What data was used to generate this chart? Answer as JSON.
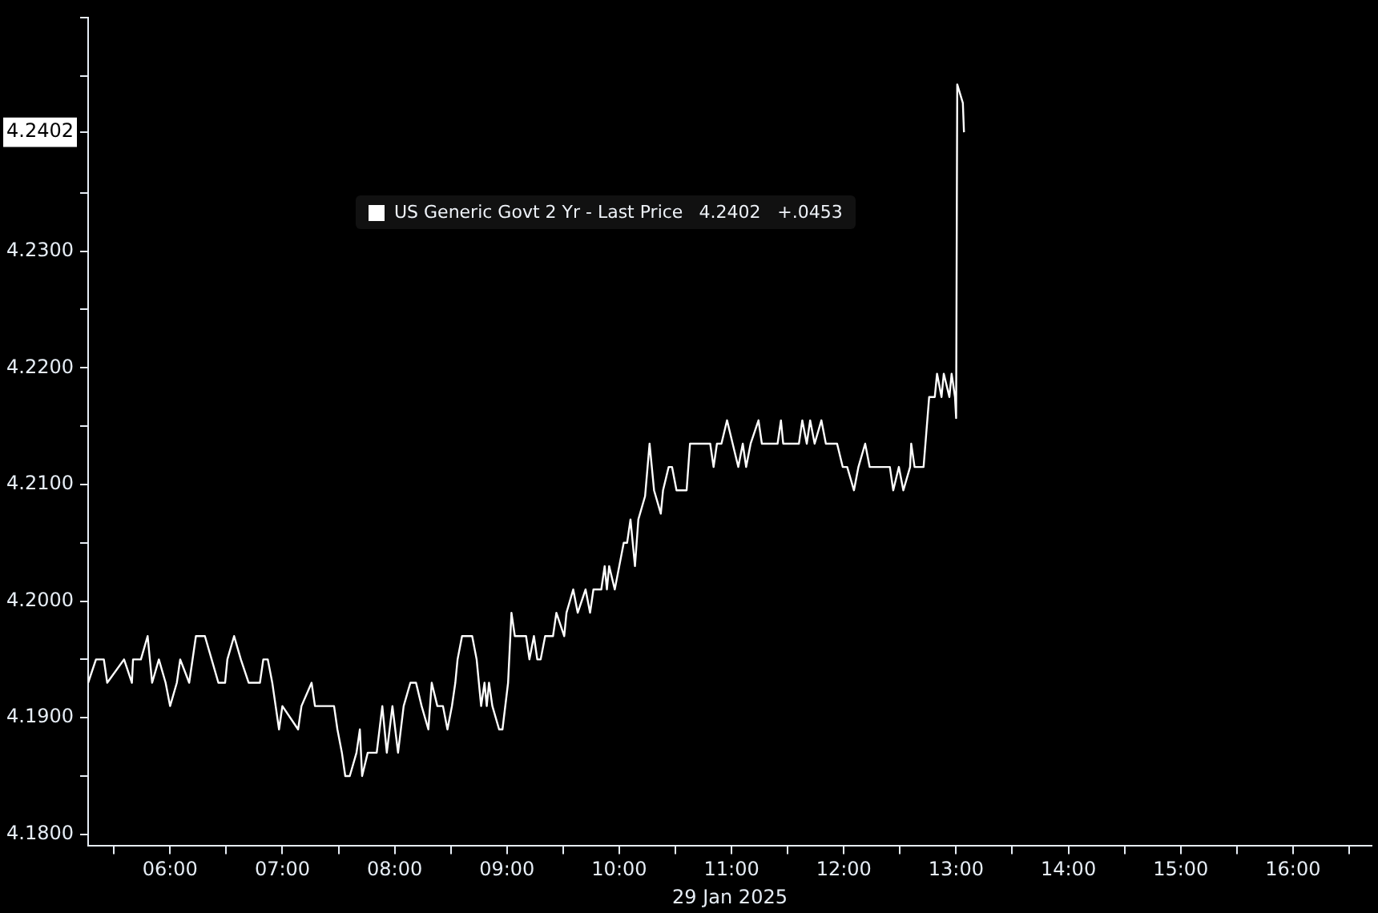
{
  "chart_data": {
    "type": "line",
    "xlabel": "29 Jan 2025",
    "x": [
      5.27,
      5.34,
      5.41,
      5.44,
      5.59,
      5.66,
      5.67,
      5.74,
      5.8,
      5.84,
      5.9,
      5.96,
      6.0,
      6.06,
      6.09,
      6.17,
      6.23,
      6.31,
      6.37,
      6.43,
      6.49,
      6.51,
      6.57,
      6.63,
      6.7,
      6.8,
      6.83,
      6.87,
      6.91,
      6.94,
      6.97,
      7.0,
      7.14,
      7.17,
      7.26,
      7.29,
      7.46,
      7.49,
      7.53,
      7.56,
      7.6,
      7.66,
      7.69,
      7.71,
      7.76,
      7.84,
      7.89,
      7.93,
      7.98,
      8.03,
      8.08,
      8.14,
      8.19,
      8.24,
      8.3,
      8.33,
      8.38,
      8.43,
      8.47,
      8.51,
      8.54,
      8.56,
      8.6,
      8.69,
      8.73,
      8.77,
      8.8,
      8.82,
      8.84,
      8.87,
      8.93,
      8.96,
      9.01,
      9.04,
      9.07,
      9.1,
      9.17,
      9.2,
      9.24,
      9.27,
      9.3,
      9.34,
      9.41,
      9.44,
      9.51,
      9.53,
      9.59,
      9.63,
      9.7,
      9.74,
      9.77,
      9.84,
      9.87,
      9.89,
      9.91,
      9.96,
      10.0,
      10.04,
      10.07,
      10.1,
      10.14,
      10.17,
      10.23,
      10.27,
      10.31,
      10.37,
      10.39,
      10.44,
      10.47,
      10.51,
      10.6,
      10.63,
      10.81,
      10.84,
      10.87,
      10.91,
      10.96,
      11.01,
      11.06,
      11.1,
      11.13,
      11.17,
      11.24,
      11.27,
      11.41,
      11.44,
      11.46,
      11.6,
      11.63,
      11.67,
      11.7,
      11.74,
      11.8,
      11.84,
      11.94,
      11.99,
      12.03,
      12.09,
      12.13,
      12.19,
      12.23,
      12.41,
      12.44,
      12.49,
      12.53,
      12.59,
      12.6,
      12.63,
      12.71,
      12.76,
      12.81,
      12.83,
      12.87,
      12.89,
      12.94,
      12.96,
      12.99,
      13.0,
      13.01,
      13.06,
      13.07
    ],
    "series": [
      {
        "name": "US Generic Govt 2 Yr - Last Price",
        "color": "#ffffff",
        "values": [
          4.193,
          4.195,
          4.195,
          4.193,
          4.195,
          4.193,
          4.195,
          4.195,
          4.197,
          4.193,
          4.195,
          4.193,
          4.191,
          4.193,
          4.195,
          4.193,
          4.197,
          4.197,
          4.195,
          4.193,
          4.193,
          4.195,
          4.197,
          4.195,
          4.193,
          4.193,
          4.195,
          4.195,
          4.193,
          4.191,
          4.189,
          4.191,
          4.189,
          4.191,
          4.193,
          4.191,
          4.191,
          4.189,
          4.187,
          4.185,
          4.185,
          4.187,
          4.189,
          4.185,
          4.187,
          4.187,
          4.191,
          4.187,
          4.191,
          4.187,
          4.191,
          4.193,
          4.193,
          4.191,
          4.189,
          4.193,
          4.191,
          4.191,
          4.189,
          4.191,
          4.193,
          4.195,
          4.197,
          4.197,
          4.195,
          4.191,
          4.193,
          4.191,
          4.193,
          4.191,
          4.189,
          4.189,
          4.193,
          4.199,
          4.197,
          4.197,
          4.197,
          4.195,
          4.197,
          4.195,
          4.195,
          4.197,
          4.197,
          4.199,
          4.197,
          4.199,
          4.201,
          4.199,
          4.201,
          4.199,
          4.201,
          4.201,
          4.203,
          4.201,
          4.203,
          4.201,
          4.203,
          4.205,
          4.205,
          4.207,
          4.203,
          4.207,
          4.209,
          4.2135,
          4.2095,
          4.2075,
          4.2095,
          4.2115,
          4.2115,
          4.2095,
          4.2095,
          4.2135,
          4.2135,
          4.2115,
          4.2135,
          4.2135,
          4.2155,
          4.2135,
          4.2115,
          4.2135,
          4.2115,
          4.2135,
          4.2155,
          4.2135,
          4.2135,
          4.2155,
          4.2135,
          4.2135,
          4.2155,
          4.2135,
          4.2155,
          4.2135,
          4.2155,
          4.2135,
          4.2135,
          4.2115,
          4.2115,
          4.2095,
          4.2115,
          4.2135,
          4.2115,
          4.2115,
          4.2095,
          4.2115,
          4.2095,
          4.2115,
          4.2135,
          4.2115,
          4.2115,
          4.2175,
          4.2175,
          4.2195,
          4.2175,
          4.2195,
          4.2175,
          4.2195,
          4.2175,
          4.2157,
          4.2443,
          4.2427,
          4.2402
        ]
      }
    ],
    "annotations": [
      "4.2402   +.0453"
    ],
    "xlim": [
      5.27,
      16.7
    ],
    "xticks": [
      {
        "value": 5.5,
        "label": null
      },
      {
        "value": 6,
        "label": "06:00"
      },
      {
        "value": 6.5,
        "label": null
      },
      {
        "value": 7,
        "label": "07:00"
      },
      {
        "value": 7.5,
        "label": null
      },
      {
        "value": 8,
        "label": "08:00"
      },
      {
        "value": 8.5,
        "label": null
      },
      {
        "value": 9,
        "label": "09:00"
      },
      {
        "value": 9.5,
        "label": null
      },
      {
        "value": 10,
        "label": "10:00"
      },
      {
        "value": 10.5,
        "label": null
      },
      {
        "value": 11,
        "label": "11:00"
      },
      {
        "value": 11.5,
        "label": null
      },
      {
        "value": 12,
        "label": "12:00"
      },
      {
        "value": 12.5,
        "label": null
      },
      {
        "value": 13,
        "label": "13:00"
      },
      {
        "value": 13.5,
        "label": null
      },
      {
        "value": 14,
        "label": "14:00"
      },
      {
        "value": 14.5,
        "label": null
      },
      {
        "value": 15,
        "label": "15:00"
      },
      {
        "value": 15.5,
        "label": null
      },
      {
        "value": 16,
        "label": "16:00"
      },
      {
        "value": 16.5,
        "label": null
      }
    ],
    "ylim": [
      4.179,
      4.25
    ],
    "yticks": [
      {
        "value": 4.18,
        "label": "4.1800"
      },
      {
        "value": 4.185,
        "label": null
      },
      {
        "value": 4.19,
        "label": "4.1900"
      },
      {
        "value": 4.195,
        "label": null
      },
      {
        "value": 4.2,
        "label": "4.2000"
      },
      {
        "value": 4.205,
        "label": null
      },
      {
        "value": 4.21,
        "label": "4.2100"
      },
      {
        "value": 4.215,
        "label": null
      },
      {
        "value": 4.22,
        "label": "4.2200"
      },
      {
        "value": 4.225,
        "label": null
      },
      {
        "value": 4.23,
        "label": "4.2300"
      },
      {
        "value": 4.235,
        "label": null
      },
      {
        "value": 4.2402,
        "label": "4.2402"
      },
      {
        "value": 4.245,
        "label": null
      },
      {
        "value": 4.25,
        "label": null
      }
    ],
    "grid": false,
    "legend": "top",
    "marker": "none",
    "line_style": "solid"
  }
}
